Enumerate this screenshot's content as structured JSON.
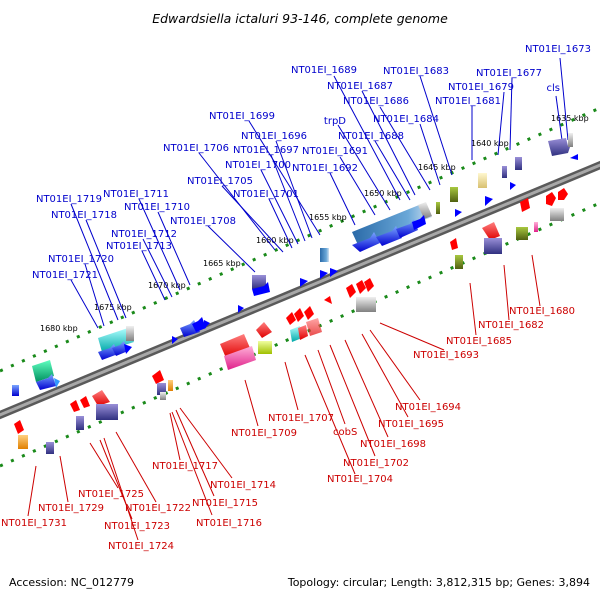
{
  "title": "Edwardsiella ictaluri 93-146, complete genome",
  "accession_text": "Accession: NC_012779",
  "summary_text": "Topology: circular; Length: 3,812,315 bp; Genes: 3,894",
  "colors": {
    "upper_label": "#0000cc",
    "lower_label": "#cc0000",
    "backbone": "#808080",
    "ruler": "#1a8a1a"
  },
  "ticks": [
    "1635 kbp",
    "1640 kbp",
    "1645 kbp",
    "1650 kbp",
    "1655 kbp",
    "1660 kbp",
    "1665 kbp",
    "1670 kbp",
    "1675 kbp",
    "1680 kbp"
  ],
  "upper_labels": [
    "NT01EI_1673",
    "cls",
    "NT01EI_1677",
    "NT01EI_1679",
    "NT01EI_1681",
    "NT01EI_1683",
    "NT01EI_1684",
    "NT01EI_1686",
    "NT01EI_1687",
    "NT01EI_1689",
    "NT01EI_1688",
    "trpD",
    "NT01EI_1691",
    "NT01EI_1692",
    "NT01EI_1699",
    "NT01EI_1696",
    "NT01EI_1697",
    "NT01EI_1706",
    "NT01EI_1700",
    "NT01EI_1705",
    "NT01EI_1701",
    "NT01EI_1711",
    "NT01EI_1710",
    "NT01EI_1708",
    "NT01EI_1719",
    "NT01EI_1718",
    "NT01EI_1712",
    "NT01EI_1713",
    "NT01EI_1720",
    "NT01EI_1721"
  ],
  "lower_labels": [
    "NT01EI_1680",
    "NT01EI_1682",
    "NT01EI_1685",
    "NT01EI_1693",
    "NT01EI_1694",
    "NT01EI_1695",
    "NT01EI_1698",
    "NT01EI_1702",
    "cobS",
    "NT01EI_1704",
    "NT01EI_1707",
    "NT01EI_1709",
    "NT01EI_1714",
    "NT01EI_1715",
    "NT01EI_1716",
    "NT01EI_1717",
    "NT01EI_1722",
    "NT01EI_1725",
    "NT01EI_1723",
    "NT01EI_1724",
    "NT01EI_1729",
    "NT01EI_1731"
  ]
}
